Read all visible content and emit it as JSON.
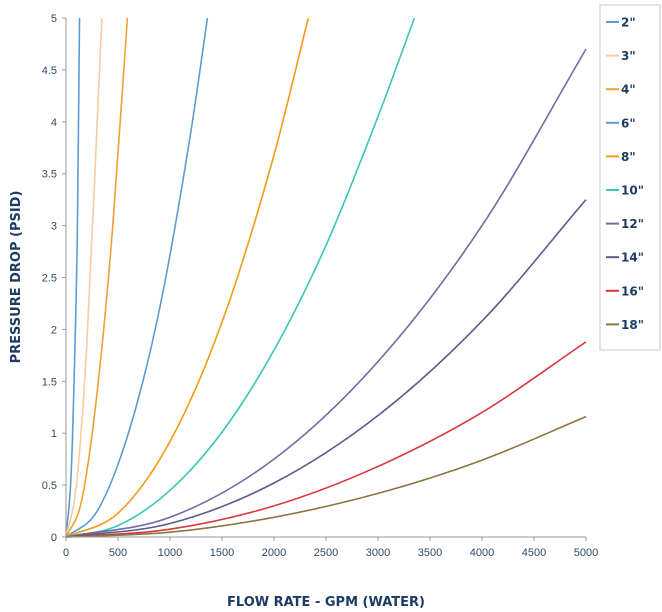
{
  "chart_data": {
    "type": "line",
    "xlabel": "FLOW RATE - GPM (WATER)",
    "ylabel": "PRESSURE DROP (PSID)",
    "xlim": [
      0,
      5000
    ],
    "ylim": [
      0,
      5
    ],
    "x_ticks": [
      "0",
      "500",
      "1000",
      "1500",
      "2000",
      "2500",
      "3000",
      "3500",
      "4000",
      "4500",
      "5000"
    ],
    "y_ticks": [
      "0",
      "0.5",
      "1",
      "1.5",
      "2",
      "2.5",
      "3",
      "3.5",
      "4",
      "4.5",
      "5"
    ],
    "grid": false,
    "legend": "right",
    "series": [
      {
        "name": "2\"",
        "color": "#5b9bd5",
        "curve": [
          [
            0,
            0
          ],
          [
            50,
            0.62
          ],
          [
            80,
            1.6
          ],
          [
            110,
            3.0
          ],
          [
            130,
            5.0
          ]
        ]
      },
      {
        "name": "3\"",
        "color": "#f8cba0",
        "curve": [
          [
            0,
            0
          ],
          [
            100,
            0.5
          ],
          [
            200,
            1.85
          ],
          [
            300,
            4.0
          ],
          [
            345,
            5.0
          ]
        ]
      },
      {
        "name": "4\"",
        "color": "#f0a030",
        "curve": [
          [
            0,
            0
          ],
          [
            150,
            0.35
          ],
          [
            300,
            1.4
          ],
          [
            450,
            3.0
          ],
          [
            590,
            5.0
          ]
        ]
      },
      {
        "name": "6\"",
        "color": "#5b9bd5",
        "curve": [
          [
            0,
            0
          ],
          [
            300,
            0.25
          ],
          [
            600,
            1.0
          ],
          [
            900,
            2.2
          ],
          [
            1200,
            3.9
          ],
          [
            1360,
            5.0
          ]
        ]
      },
      {
        "name": "8\"",
        "color": "#f39c12",
        "curve": [
          [
            0,
            0
          ],
          [
            500,
            0.23
          ],
          [
            1000,
            0.92
          ],
          [
            1500,
            2.07
          ],
          [
            2000,
            3.68
          ],
          [
            2330,
            5.0
          ]
        ]
      },
      {
        "name": "10\"",
        "color": "#3cc4b8",
        "curve": [
          [
            0,
            0
          ],
          [
            500,
            0.11
          ],
          [
            1000,
            0.45
          ],
          [
            1500,
            1.01
          ],
          [
            2000,
            1.8
          ],
          [
            2500,
            2.81
          ],
          [
            3000,
            4.05
          ],
          [
            3350,
            5.0
          ]
        ]
      },
      {
        "name": "12\"",
        "color": "#6f6ba3",
        "curve": [
          [
            0,
            0
          ],
          [
            1000,
            0.19
          ],
          [
            2000,
            0.75
          ],
          [
            3000,
            1.69
          ],
          [
            4000,
            3.0
          ],
          [
            5000,
            4.7
          ]
        ]
      },
      {
        "name": "14\"",
        "color": "#5a5a8c",
        "curve": [
          [
            0,
            0
          ],
          [
            1000,
            0.13
          ],
          [
            2000,
            0.52
          ],
          [
            3000,
            1.17
          ],
          [
            4000,
            2.08
          ],
          [
            5000,
            3.25
          ]
        ]
      },
      {
        "name": "16\"",
        "color": "#d9363e",
        "curve": [
          [
            0,
            0
          ],
          [
            1000,
            0.075
          ],
          [
            2000,
            0.3
          ],
          [
            3000,
            0.68
          ],
          [
            4000,
            1.2
          ],
          [
            5000,
            1.88
          ]
        ]
      },
      {
        "name": "18\"",
        "color": "#8b7540",
        "curve": [
          [
            0,
            0
          ],
          [
            1000,
            0.046
          ],
          [
            2000,
            0.19
          ],
          [
            3000,
            0.42
          ],
          [
            4000,
            0.74
          ],
          [
            5000,
            1.16
          ]
        ]
      }
    ]
  }
}
